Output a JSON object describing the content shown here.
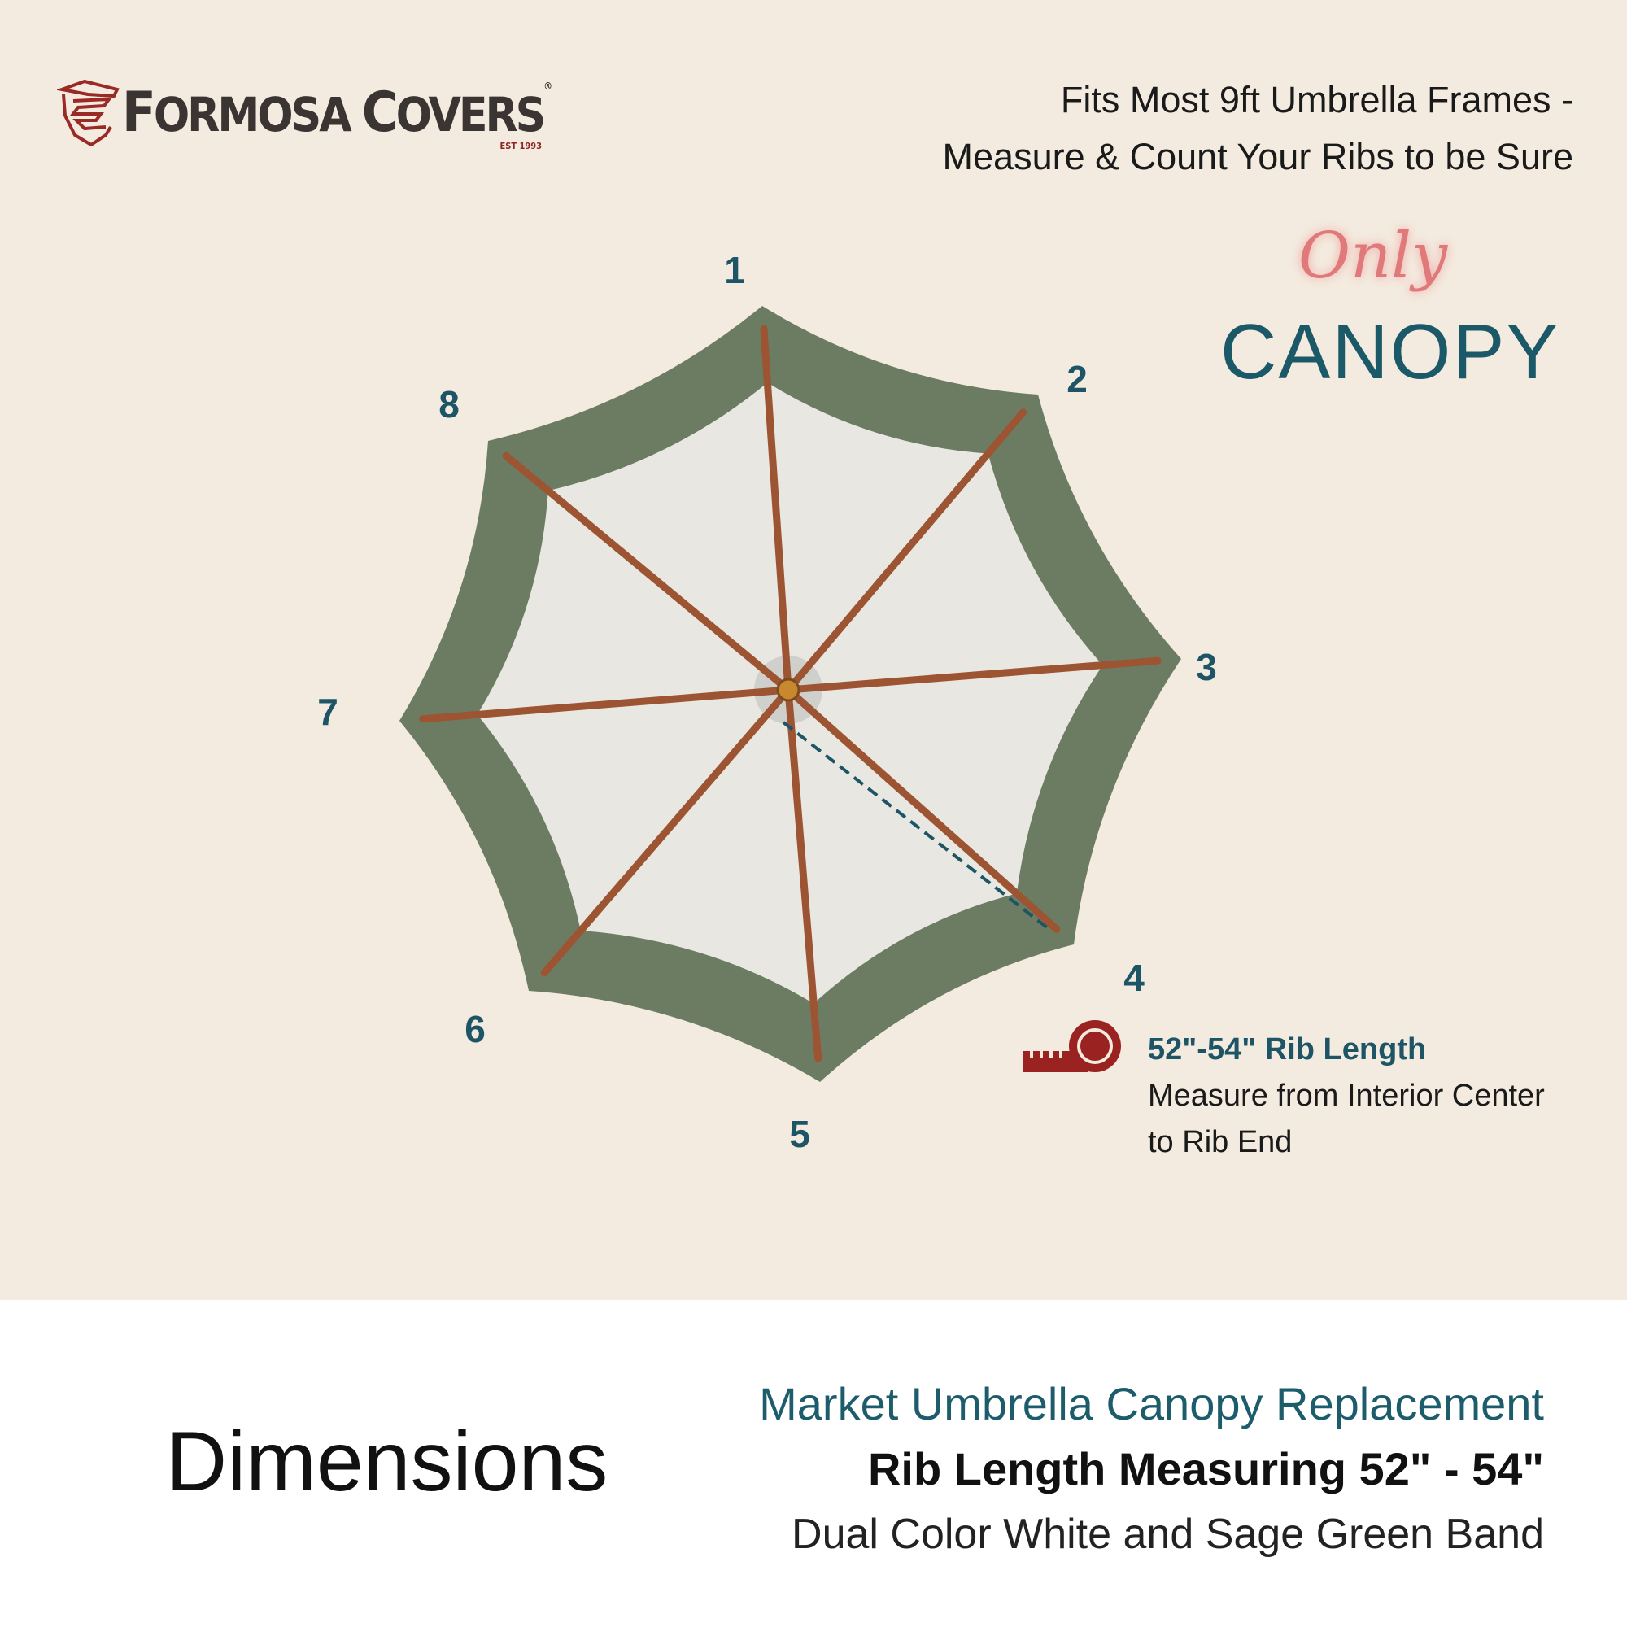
{
  "brand": {
    "logo_text": "FORMOSA COVERS",
    "established": "EST 1993"
  },
  "headline": {
    "line1": "Fits Most 9ft Umbrella Frames -",
    "line2": "Measure & Count Your Ribs to be Sure"
  },
  "badge": {
    "script_word": "Only",
    "word": "CANOPY"
  },
  "rib_numbers": [
    "1",
    "2",
    "3",
    "4",
    "5",
    "6",
    "7",
    "8"
  ],
  "measurement": {
    "icon": "tape-measure-icon",
    "title": "52\"-54\" Rib Length",
    "line1": "Measure from Interior Center",
    "line2": "to Rib End"
  },
  "footer": {
    "heading": "Dimensions",
    "line1": "Market Umbrella Canopy Replacement",
    "line2": "Rib Length Measuring 52\" - 54\"",
    "line3": "Dual Color White and Sage Green Band"
  },
  "colors": {
    "background": "#f3ebdf",
    "band": "#6c7c62",
    "canopy": "#e9e7e1",
    "ribs": "#9c5432",
    "accent": "#1d5566",
    "logo_red": "#9a2a26"
  }
}
